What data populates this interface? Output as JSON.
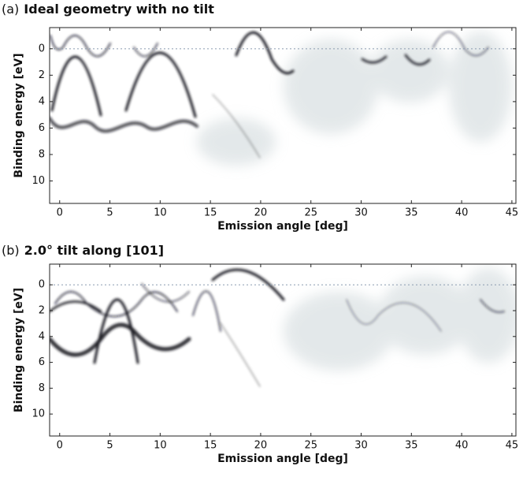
{
  "chart_data": [
    {
      "type": "heatmap",
      "panel_label": "(a)",
      "title": "Ideal geometry with no tilt",
      "x_label": "Emission angle [deg]",
      "y_label": "Binding energy [eV]",
      "xlim": [
        -1,
        45.4
      ],
      "ylim": [
        -1.6,
        11.7
      ],
      "y_inverted": true,
      "xticks": [
        0,
        5,
        10,
        15,
        20,
        25,
        30,
        35,
        40,
        45
      ],
      "yticks": [
        0,
        2,
        4,
        6,
        8,
        10
      ],
      "hline": 0
    },
    {
      "type": "heatmap",
      "panel_label": "(b)",
      "title": "2.0° tilt along [101]",
      "x_label": "Emission angle [deg]",
      "y_label": "Binding energy [eV]",
      "xlim": [
        -1,
        45.4
      ],
      "ylim": [
        -1.6,
        11.7
      ],
      "y_inverted": true,
      "xticks": [
        0,
        5,
        10,
        15,
        20,
        25,
        30,
        35,
        40,
        45
      ],
      "yticks": [
        0,
        2,
        4,
        6,
        8,
        10
      ],
      "hline": 0
    }
  ]
}
